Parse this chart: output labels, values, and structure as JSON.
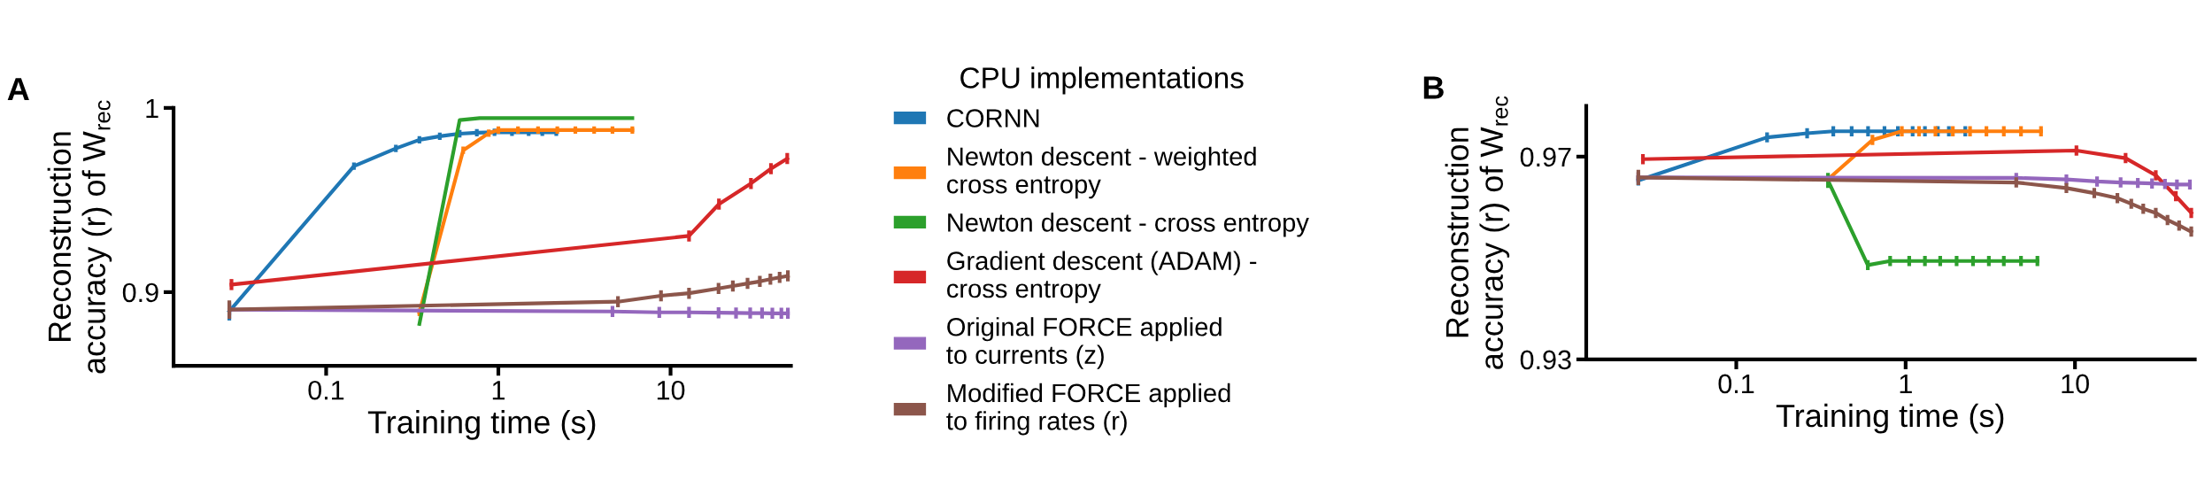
{
  "chart_data": [
    {
      "type": "line",
      "annotations": [
        "A"
      ],
      "xlabel": "Training time (s)",
      "ylabel": "Reconstruction\naccuracy (r) of W$_{rec}$",
      "log": "x",
      "xlim": [
        0.013,
        50
      ],
      "xticks": [
        0.1,
        1,
        10
      ],
      "ylim": [
        0.86,
        1.0
      ],
      "yticks": [
        0.9,
        1
      ],
      "grid": false,
      "legend": "right",
      "legend_title": "CPU implementations",
      "series": [
        {
          "name": "CORNN",
          "color": "#1f77b4",
          "x": [
            0.0274,
            0.145,
            0.254,
            0.348,
            0.457,
            0.596,
            0.75,
            0.95,
            1.2,
            1.5,
            1.8,
            2.17
          ],
          "values": [
            0.8896,
            0.9684,
            0.978,
            0.9827,
            0.9846,
            0.986,
            0.9865,
            0.9868,
            0.9868,
            0.9868,
            0.9868,
            0.9868
          ],
          "errors": [
            0.005,
            0.002,
            0.002,
            0.002,
            0.002,
            0.002,
            0.002,
            0.002,
            0.002,
            0.002,
            0.002,
            0.002
          ]
        },
        {
          "name": "Newton descent - weighted\ncross entropy",
          "color": "#ff7f0e",
          "x": [
            0.348,
            0.625,
            0.88,
            1.0,
            1.3,
            1.7,
            2.2,
            2.8,
            3.6,
            4.6,
            6.0
          ],
          "values": [
            0.889,
            0.977,
            0.9863,
            0.988,
            0.988,
            0.988,
            0.988,
            0.988,
            0.988,
            0.988,
            0.988
          ],
          "errors": [
            0.002,
            0.002,
            0.002,
            0.002,
            0.002,
            0.002,
            0.002,
            0.002,
            0.002,
            0.002,
            0.002
          ]
        },
        {
          "name": "Newton descent - cross entropy",
          "color": "#2ca02c",
          "x": [
            0.348,
            0.596,
            0.78,
            6.0
          ],
          "values": [
            0.8827,
            0.9934,
            0.9945,
            0.9945
          ]
        },
        {
          "name": "Gradient descent (ADAM) -\ncross entropy",
          "color": "#d62728",
          "x": [
            0.0282,
            12.8,
            19.1,
            29.3,
            38.3,
            47.6
          ],
          "values": [
            0.9041,
            0.9305,
            0.9478,
            0.959,
            0.967,
            0.9725
          ],
          "errors": [
            0.003,
            0.003,
            0.003,
            0.003,
            0.003,
            0.003
          ]
        },
        {
          "name": "Original FORCE applied\nto currents (z)",
          "color": "#9467bd",
          "x": [
            0.0274,
            4.6,
            8.6,
            12.8,
            19,
            24,
            29,
            34,
            39,
            44,
            48
          ],
          "values": [
            0.8905,
            0.8895,
            0.889,
            0.889,
            0.8888,
            0.8887,
            0.8886,
            0.8886,
            0.8885,
            0.8885,
            0.8885
          ],
          "errors": [
            0.003,
            0.003,
            0.003,
            0.003,
            0.003,
            0.003,
            0.003,
            0.003,
            0.003,
            0.003,
            0.003
          ]
        },
        {
          "name": "Modified FORCE applied\nto firing rates (r)",
          "color": "#8c564b",
          "x": [
            0.0274,
            4.95,
            8.8,
            12.8,
            19,
            23,
            28,
            33,
            38,
            43,
            48
          ],
          "values": [
            0.8905,
            0.8948,
            0.898,
            0.8994,
            0.902,
            0.9033,
            0.9047,
            0.9058,
            0.907,
            0.908,
            0.9088
          ],
          "errors": [
            0.005,
            0.003,
            0.003,
            0.003,
            0.003,
            0.003,
            0.003,
            0.003,
            0.003,
            0.003,
            0.003
          ]
        }
      ]
    },
    {
      "type": "line",
      "annotations": [
        "B"
      ],
      "xlabel": "Training time (s)",
      "ylabel": "Reconstruction\naccuracy (r) of W$_{rec}$",
      "log": "x",
      "xlim": [
        0.013,
        51
      ],
      "xticks": [
        0.1,
        1,
        10
      ],
      "ylim": [
        0.93,
        0.98
      ],
      "yticks": [
        0.93,
        0.97
      ],
      "grid": false,
      "series": [
        {
          "color": "#1f77b4",
          "x": [
            0.0264,
            0.152,
            0.262,
            0.374,
            0.48,
            0.6,
            0.75,
            0.9,
            1.1,
            1.3,
            1.55,
            1.8,
            2.25
          ],
          "values": [
            0.9653,
            0.9738,
            0.9746,
            0.975,
            0.975,
            0.975,
            0.975,
            0.975,
            0.975,
            0.975,
            0.975,
            0.975,
            0.975
          ],
          "errors": [
            0.001,
            0.001,
            0.001,
            0.001,
            0.001,
            0.001,
            0.001,
            0.001,
            0.001,
            0.001,
            0.001,
            0.001,
            0.001
          ]
        },
        {
          "color": "#ff7f0e",
          "x": [
            0.348,
            0.637,
            0.95,
            1.2,
            1.5,
            1.9,
            2.4,
            3.0,
            3.8,
            4.8,
            6.3
          ],
          "values": [
            0.9655,
            0.9733,
            0.975,
            0.975,
            0.975,
            0.975,
            0.975,
            0.975,
            0.975,
            0.975,
            0.975
          ],
          "errors": [
            null,
            0.001,
            0.001,
            0.001,
            0.001,
            0.001,
            0.001,
            0.001,
            0.001,
            0.001,
            0.001
          ]
        },
        {
          "color": "#2ca02c",
          "x": [
            0.348,
            0.598,
            0.81,
            1.05,
            1.3,
            1.6,
            2.0,
            2.5,
            3.1,
            3.8,
            4.8,
            6.0
          ],
          "values": [
            0.9653,
            0.9486,
            0.9494,
            0.9494,
            0.9494,
            0.9494,
            0.9494,
            0.9494,
            0.9494,
            0.9494,
            0.9494,
            0.9494
          ],
          "errors": [
            0.0015,
            0.001,
            0.001,
            0.001,
            0.001,
            0.001,
            0.001,
            0.001,
            0.001,
            0.001,
            0.001,
            0.001
          ]
        },
        {
          "color": "#d62728",
          "x": [
            0.0281,
            10.2,
            19.9,
            30,
            39.4,
            48.6
          ],
          "values": [
            0.9695,
            0.9712,
            0.9697,
            0.9663,
            0.9622,
            0.9589
          ],
          "errors": [
            0.001,
            0.001,
            0.001,
            0.001,
            0.001,
            0.001
          ]
        },
        {
          "color": "#9467bd",
          "x": [
            0.0264,
            4.5,
            8.9,
            13.5,
            18.6,
            23.5,
            28.5,
            34,
            40,
            47.7
          ],
          "values": [
            0.9659,
            0.9658,
            0.9655,
            0.9651,
            0.9649,
            0.9648,
            0.9647,
            0.9646,
            0.9645,
            0.9645
          ],
          "errors": [
            0.001,
            0.001,
            0.001,
            0.001,
            0.001,
            0.001,
            0.001,
            0.001,
            0.001,
            0.001
          ]
        },
        {
          "color": "#8c564b",
          "x": [
            0.0264,
            4.5,
            8.9,
            13,
            17.8,
            21.5,
            25.3,
            30,
            35.2,
            41.2,
            48.6
          ],
          "values": [
            0.9659,
            0.9649,
            0.9638,
            0.9628,
            0.9618,
            0.9607,
            0.9597,
            0.9589,
            0.9575,
            0.9564,
            0.9552
          ],
          "errors": [
            0.0015,
            0.001,
            0.001,
            0.001,
            0.001,
            0.001,
            0.001,
            0.001,
            0.001,
            0.001,
            0.001
          ]
        }
      ]
    }
  ]
}
